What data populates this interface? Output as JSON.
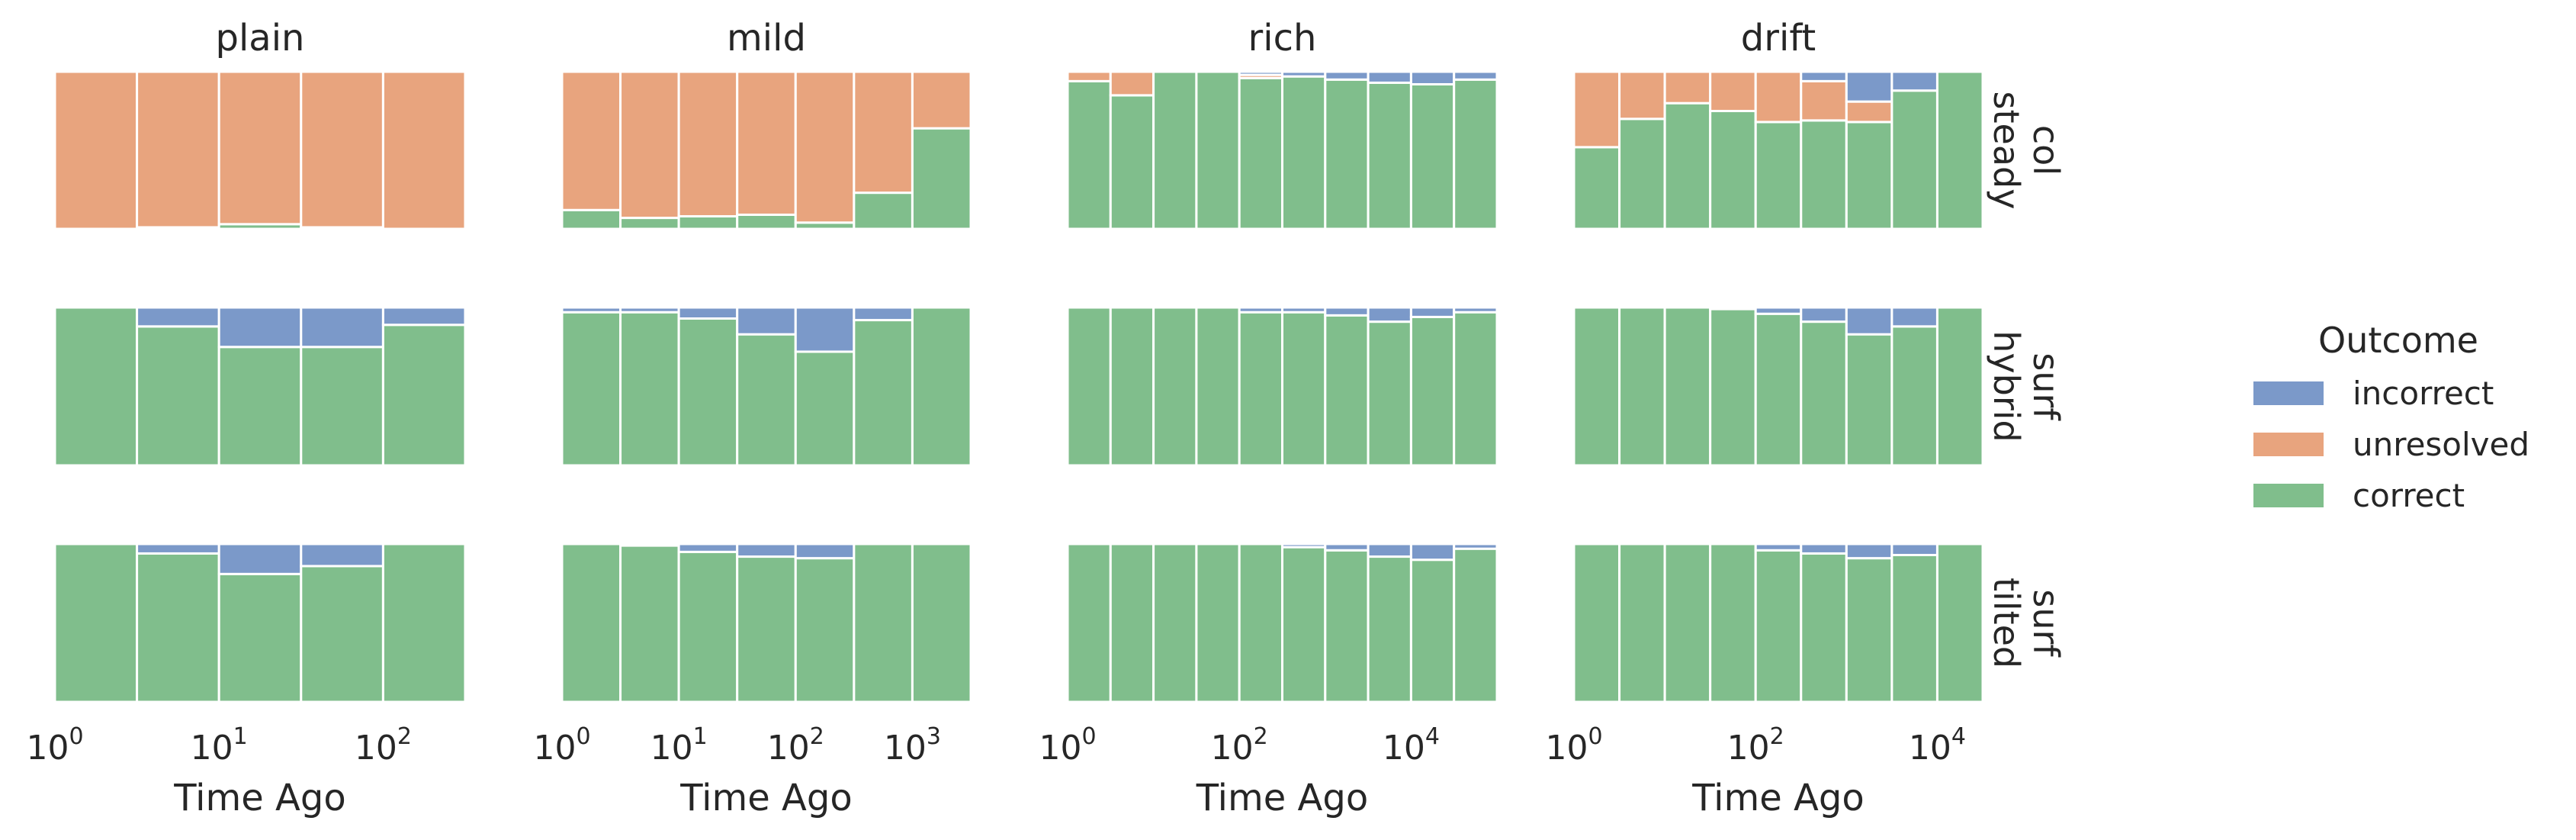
{
  "chart_data": {
    "type": "bar",
    "description": "Facet grid of stacked proportion histograms: columns are methods, rows are dataset variants; each bar shows the share of outcomes for a log-binned 'Time Ago'.",
    "columns": [
      "plain",
      "mild",
      "rich",
      "drift"
    ],
    "rows": [
      [
        "col",
        "steady"
      ],
      [
        "surf",
        "hybrid"
      ],
      [
        "surf",
        "tilted"
      ]
    ],
    "xlabel": "Time Ago",
    "x_scale": "log",
    "y_range": [
      0,
      1
    ],
    "stack_order": [
      "correct",
      "unresolved",
      "incorrect"
    ],
    "legend": {
      "title": "Outcome",
      "placement": "center-right",
      "entries": [
        {
          "name": "incorrect",
          "color": "#7b99c9"
        },
        {
          "name": "unresolved",
          "color": "#e8a47e"
        },
        {
          "name": "correct",
          "color": "#80be8c"
        }
      ]
    },
    "column_axes": [
      {
        "xlim_log10": [
          0,
          2.5
        ],
        "bin_edges_log10": [
          0,
          0.5,
          1,
          1.5,
          2,
          2.5
        ],
        "ticks": [
          0,
          1,
          2
        ]
      },
      {
        "xlim_log10": [
          0,
          3.5
        ],
        "bin_edges_log10": [
          0,
          0.5,
          1,
          1.5,
          2,
          2.5,
          3,
          3.5
        ],
        "ticks": [
          0,
          1,
          2,
          3
        ]
      },
      {
        "xlim_log10": [
          0,
          5
        ],
        "bin_edges_log10": [
          0,
          0.5,
          1,
          1.5,
          2,
          2.5,
          3,
          3.5,
          4,
          4.5,
          5
        ],
        "ticks": [
          0,
          2,
          4
        ]
      },
      {
        "xlim_log10": [
          0,
          4.5
        ],
        "bin_edges_log10": [
          0,
          0.5,
          1,
          1.5,
          2,
          2.5,
          3,
          3.5,
          4,
          4.5
        ],
        "ticks": [
          0,
          2,
          4
        ]
      }
    ],
    "panels": [
      [
        {
          "correct": [
            0.0,
            0.01,
            0.03,
            0.01,
            0.0
          ],
          "unresolved": [
            1.0,
            0.99,
            0.97,
            0.99,
            1.0
          ],
          "incorrect": [
            0,
            0,
            0,
            0,
            0
          ]
        },
        {
          "correct": [
            0.12,
            0.07,
            0.08,
            0.09,
            0.04,
            0.23,
            0.64
          ],
          "unresolved": [
            0.88,
            0.93,
            0.92,
            0.91,
            0.96,
            0.77,
            0.36
          ],
          "incorrect": [
            0,
            0,
            0,
            0,
            0,
            0,
            0
          ]
        },
        {
          "correct": [
            0.94,
            0.85,
            1.0,
            1.0,
            0.96,
            0.97,
            0.95,
            0.93,
            0.92,
            0.95
          ],
          "unresolved": [
            0.06,
            0.15,
            0.0,
            0.0,
            0.02,
            0.0,
            0.0,
            0.0,
            0.0,
            0.0
          ],
          "incorrect": [
            0,
            0,
            0,
            0,
            0.02,
            0.03,
            0.05,
            0.07,
            0.08,
            0.05
          ]
        },
        {
          "correct": [
            0.52,
            0.7,
            0.8,
            0.75,
            0.68,
            0.69,
            0.68,
            0.88,
            1.0
          ],
          "unresolved": [
            0.48,
            0.3,
            0.2,
            0.25,
            0.32,
            0.25,
            0.13,
            0.0,
            0.0
          ],
          "incorrect": [
            0,
            0,
            0,
            0,
            0,
            0.06,
            0.19,
            0.12,
            0.0
          ]
        }
      ],
      [
        {
          "correct": [
            1.0,
            0.88,
            0.75,
            0.75,
            0.89
          ],
          "unresolved": [
            0,
            0,
            0,
            0,
            0
          ],
          "incorrect": [
            0.0,
            0.12,
            0.25,
            0.25,
            0.11
          ]
        },
        {
          "correct": [
            0.97,
            0.97,
            0.93,
            0.83,
            0.72,
            0.92,
            1.0
          ],
          "unresolved": [
            0,
            0,
            0,
            0,
            0,
            0,
            0
          ],
          "incorrect": [
            0.03,
            0.03,
            0.07,
            0.17,
            0.28,
            0.08,
            0.0
          ]
        },
        {
          "correct": [
            1.0,
            1.0,
            1.0,
            1.0,
            0.97,
            0.97,
            0.95,
            0.91,
            0.94,
            0.97
          ],
          "unresolved": [
            0,
            0,
            0,
            0,
            0,
            0,
            0,
            0,
            0,
            0
          ],
          "incorrect": [
            0.0,
            0.0,
            0.0,
            0.0,
            0.03,
            0.03,
            0.05,
            0.09,
            0.06,
            0.03
          ]
        },
        {
          "correct": [
            1.0,
            1.0,
            1.0,
            0.99,
            0.96,
            0.91,
            0.83,
            0.88,
            1.0
          ],
          "unresolved": [
            0,
            0,
            0,
            0,
            0,
            0,
            0,
            0,
            0
          ],
          "incorrect": [
            0.0,
            0.0,
            0.0,
            0.01,
            0.04,
            0.09,
            0.17,
            0.12,
            0.0
          ]
        }
      ],
      [
        {
          "correct": [
            1.0,
            0.94,
            0.81,
            0.86,
            1.0
          ],
          "unresolved": [
            0,
            0,
            0,
            0,
            0
          ],
          "incorrect": [
            0.0,
            0.06,
            0.19,
            0.14,
            0.0
          ]
        },
        {
          "correct": [
            1.0,
            0.99,
            0.95,
            0.92,
            0.91,
            1.0,
            1.0
          ],
          "unresolved": [
            0,
            0,
            0,
            0,
            0,
            0,
            0
          ],
          "incorrect": [
            0.0,
            0.01,
            0.05,
            0.08,
            0.09,
            0.0,
            0.0
          ]
        },
        {
          "correct": [
            1.0,
            1.0,
            1.0,
            1.0,
            1.0,
            0.98,
            0.96,
            0.92,
            0.9,
            0.97
          ],
          "unresolved": [
            0,
            0,
            0,
            0,
            0,
            0,
            0,
            0,
            0,
            0
          ],
          "incorrect": [
            0.0,
            0.0,
            0.0,
            0.0,
            0.0,
            0.02,
            0.04,
            0.08,
            0.1,
            0.03
          ]
        },
        {
          "correct": [
            1.0,
            1.0,
            1.0,
            1.0,
            0.96,
            0.94,
            0.91,
            0.93,
            1.0
          ],
          "unresolved": [
            0,
            0,
            0,
            0,
            0,
            0,
            0,
            0,
            0
          ],
          "incorrect": [
            0.0,
            0.0,
            0.0,
            0.0,
            0.04,
            0.06,
            0.09,
            0.07,
            0.0
          ]
        }
      ]
    ]
  }
}
